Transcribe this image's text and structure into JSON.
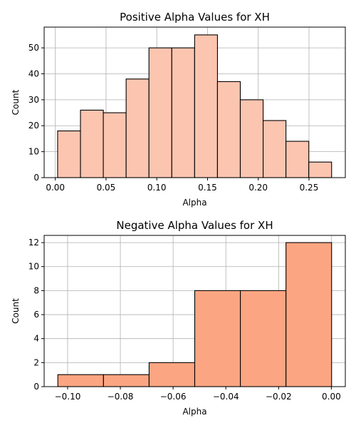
{
  "chart_data": [
    {
      "type": "bar",
      "title": "Positive Alpha Values for XH",
      "xlabel": "Alpha",
      "ylabel": "Count",
      "bin_edges": [
        0.0023,
        0.0248,
        0.0473,
        0.0698,
        0.0923,
        0.1148,
        0.1373,
        0.1598,
        0.1823,
        0.2048,
        0.2273,
        0.2498,
        0.2723
      ],
      "values": [
        18,
        26,
        25,
        38,
        50,
        50,
        55,
        37,
        30,
        22,
        14,
        6
      ],
      "xlim": [
        -0.011,
        0.2858
      ],
      "ylim": [
        0,
        58
      ],
      "xticks": [
        0.0,
        0.05,
        0.1,
        0.15,
        0.2,
        0.25
      ],
      "xtick_labels": [
        "0.00",
        "0.05",
        "0.10",
        "0.15",
        "0.20",
        "0.25"
      ],
      "yticks": [
        0,
        10,
        20,
        30,
        40,
        50
      ],
      "ytick_labels": [
        "0",
        "10",
        "20",
        "30",
        "40",
        "50"
      ],
      "bar_color": "#fcc5b0",
      "edge_color": "#000000",
      "grid": true
    },
    {
      "type": "bar",
      "title": "Negative Alpha Values for XH",
      "xlabel": "Alpha",
      "ylabel": "Count",
      "bin_edges": [
        -0.1037,
        -0.0864,
        -0.0691,
        -0.0518,
        -0.0345,
        -0.0172,
        0.0001
      ],
      "values": [
        1,
        1,
        2,
        8,
        8,
        12
      ],
      "xlim": [
        -0.1089,
        0.0053
      ],
      "ylim": [
        0,
        12.6
      ],
      "xticks": [
        -0.1,
        -0.08,
        -0.06,
        -0.04,
        -0.02,
        0.0
      ],
      "xtick_labels": [
        "−0.10",
        "−0.08",
        "−0.06",
        "−0.04",
        "−0.02",
        "0.00"
      ],
      "yticks": [
        0,
        2,
        4,
        6,
        8,
        10,
        12
      ],
      "ytick_labels": [
        "0",
        "2",
        "4",
        "6",
        "8",
        "10",
        "12"
      ],
      "bar_color": "#fca582",
      "edge_color": "#000000",
      "grid": true
    }
  ]
}
